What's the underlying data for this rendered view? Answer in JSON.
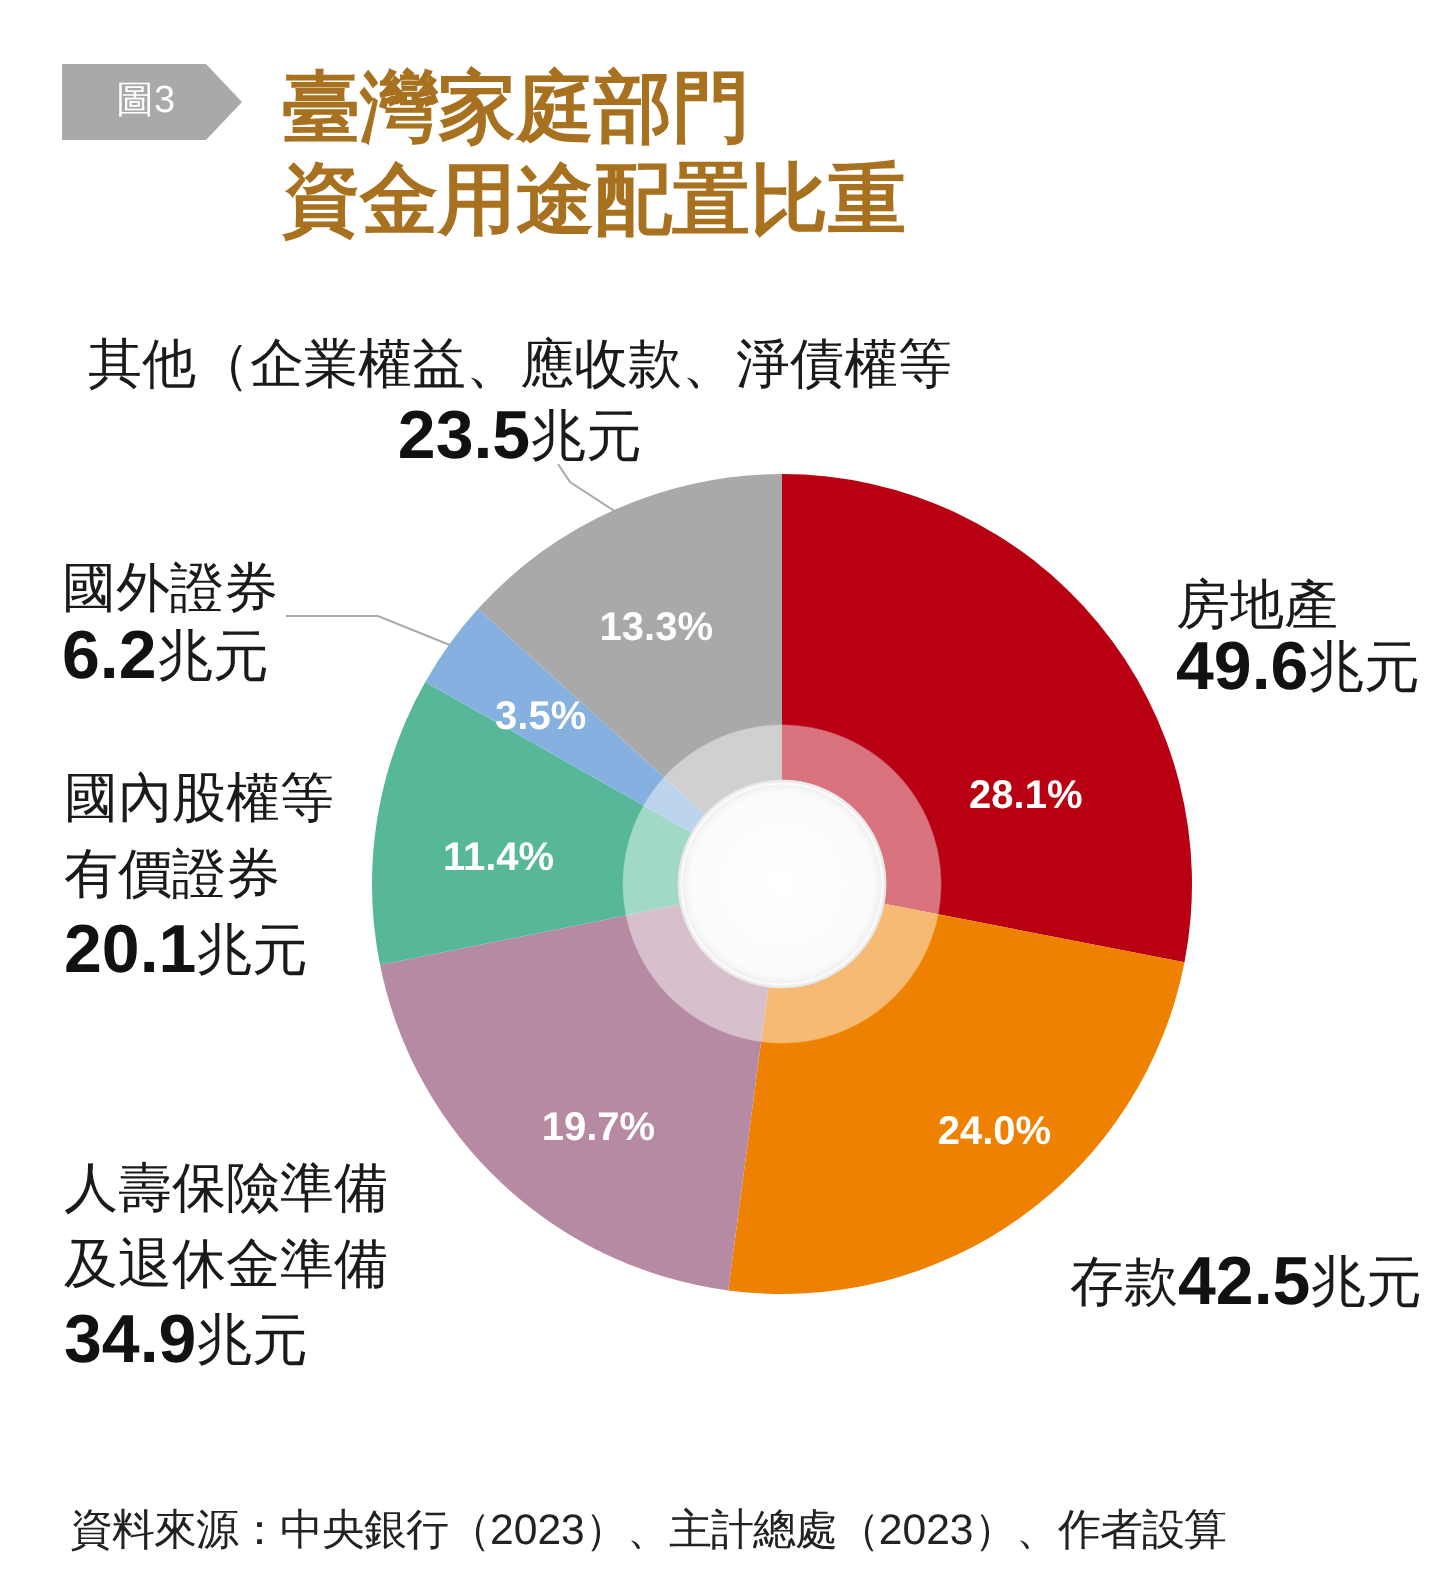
{
  "chart_data": {
    "type": "donut",
    "title": "臺灣家庭部門資金用途配置比重",
    "categories": [
      "房地產",
      "存款",
      "人壽保險準備及退休金準備",
      "國內股權等有價證券",
      "國外證券",
      "其他（企業權益、應收款、淨債權等"
    ],
    "values": [
      49.6,
      42.5,
      34.9,
      20.1,
      6.2,
      23.5
    ],
    "colors": [
      "#b90012",
      "#ee8100",
      "#b78aa3",
      "#56b898",
      "#86b0df",
      "#a9a9a9"
    ],
    "value_labels": [
      "49.6兆元",
      "42.5兆元",
      "34.9兆元",
      "20.1兆元",
      "6.2兆元",
      "23.5兆元"
    ],
    "annotations": [
      "圖3",
      {
        "text": "28.1%",
        "x": "房地產"
      },
      {
        "text": "24.0%",
        "x": "存款"
      },
      {
        "text": "19.7%",
        "x": "人壽保險準備及退休金準備"
      },
      {
        "text": "11.4%",
        "x": "國內股權等有價證券"
      },
      {
        "text": "3.5%",
        "x": "國外證券"
      },
      {
        "text": "13.3%",
        "x": "其他（企業權益、應收款、淨債權等"
      },
      "資料來源：中央銀行（2023）、主計總處（2023）、作者設算"
    ]
  }
}
